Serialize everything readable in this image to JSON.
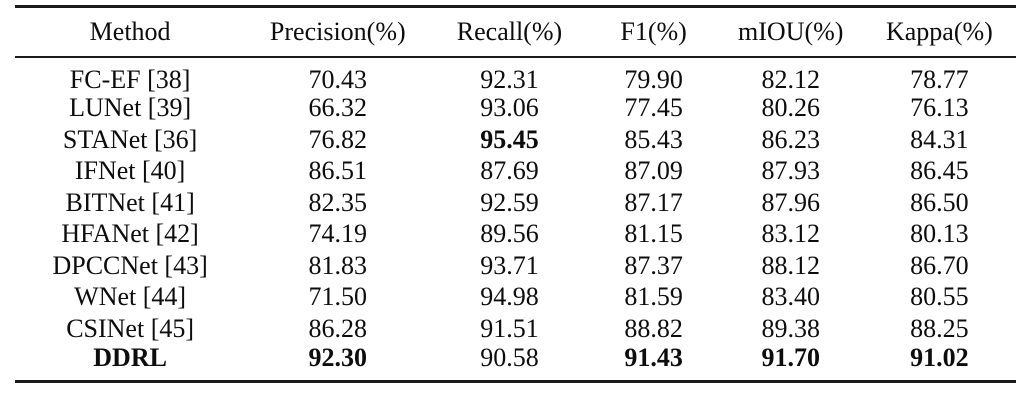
{
  "table": {
    "columns": [
      "Method",
      "Precision(%)",
      "Recall(%)",
      "F1(%)",
      "mIOU(%)",
      "Kappa(%)"
    ],
    "rows": [
      {
        "method": "FC-EF [38]",
        "method_bold": false,
        "values": [
          "70.43",
          "92.31",
          "79.90",
          "82.12",
          "78.77"
        ],
        "bold": [
          false,
          false,
          false,
          false,
          false
        ]
      },
      {
        "method": "LUNet [39]",
        "method_bold": false,
        "values": [
          "66.32",
          "93.06",
          "77.45",
          "80.26",
          "76.13"
        ],
        "bold": [
          false,
          false,
          false,
          false,
          false
        ]
      },
      {
        "method": "STANet [36]",
        "method_bold": false,
        "values": [
          "76.82",
          "95.45",
          "85.43",
          "86.23",
          "84.31"
        ],
        "bold": [
          false,
          true,
          false,
          false,
          false
        ]
      },
      {
        "method": "IFNet [40]",
        "method_bold": false,
        "values": [
          "86.51",
          "87.69",
          "87.09",
          "87.93",
          "86.45"
        ],
        "bold": [
          false,
          false,
          false,
          false,
          false
        ]
      },
      {
        "method": "BITNet [41]",
        "method_bold": false,
        "values": [
          "82.35",
          "92.59",
          "87.17",
          "87.96",
          "86.50"
        ],
        "bold": [
          false,
          false,
          false,
          false,
          false
        ]
      },
      {
        "method": "HFANet [42]",
        "method_bold": false,
        "values": [
          "74.19",
          "89.56",
          "81.15",
          "83.12",
          "80.13"
        ],
        "bold": [
          false,
          false,
          false,
          false,
          false
        ]
      },
      {
        "method": "DPCCNet [43]",
        "method_bold": false,
        "values": [
          "81.83",
          "93.71",
          "87.37",
          "88.12",
          "86.70"
        ],
        "bold": [
          false,
          false,
          false,
          false,
          false
        ]
      },
      {
        "method": "WNet [44]",
        "method_bold": false,
        "values": [
          "71.50",
          "94.98",
          "81.59",
          "83.40",
          "80.55"
        ],
        "bold": [
          false,
          false,
          false,
          false,
          false
        ]
      },
      {
        "method": "CSINet [45]",
        "method_bold": false,
        "values": [
          "86.28",
          "91.51",
          "88.82",
          "89.38",
          "88.25"
        ],
        "bold": [
          false,
          false,
          false,
          false,
          false
        ]
      },
      {
        "method": "DDRL",
        "method_bold": true,
        "values": [
          "92.30",
          "90.58",
          "91.43",
          "91.70",
          "91.02"
        ],
        "bold": [
          true,
          false,
          true,
          true,
          true
        ]
      }
    ]
  },
  "chart_data": {
    "type": "table",
    "title": "",
    "columns": [
      "Method",
      "Precision(%)",
      "Recall(%)",
      "F1(%)",
      "mIOU(%)",
      "Kappa(%)"
    ],
    "series": [
      {
        "name": "FC-EF [38]",
        "values": [
          70.43,
          92.31,
          79.9,
          82.12,
          78.77
        ]
      },
      {
        "name": "LUNet [39]",
        "values": [
          66.32,
          93.06,
          77.45,
          80.26,
          76.13
        ]
      },
      {
        "name": "STANet [36]",
        "values": [
          76.82,
          95.45,
          85.43,
          86.23,
          84.31
        ]
      },
      {
        "name": "IFNet [40]",
        "values": [
          86.51,
          87.69,
          87.09,
          87.93,
          86.45
        ]
      },
      {
        "name": "BITNet [41]",
        "values": [
          82.35,
          92.59,
          87.17,
          87.96,
          86.5
        ]
      },
      {
        "name": "HFANet [42]",
        "values": [
          74.19,
          89.56,
          81.15,
          83.12,
          80.13
        ]
      },
      {
        "name": "DPCCNet [43]",
        "values": [
          81.83,
          93.71,
          87.37,
          88.12,
          86.7
        ]
      },
      {
        "name": "WNet [44]",
        "values": [
          71.5,
          94.98,
          81.59,
          83.4,
          80.55
        ]
      },
      {
        "name": "CSINet [45]",
        "values": [
          86.28,
          91.51,
          88.82,
          89.38,
          88.25
        ]
      },
      {
        "name": "DDRL",
        "values": [
          92.3,
          90.58,
          91.43,
          91.7,
          91.02
        ]
      }
    ]
  },
  "colors": {
    "text": "#0d0d0d",
    "rule": "#1b1b1b",
    "background": "#ffffff"
  }
}
